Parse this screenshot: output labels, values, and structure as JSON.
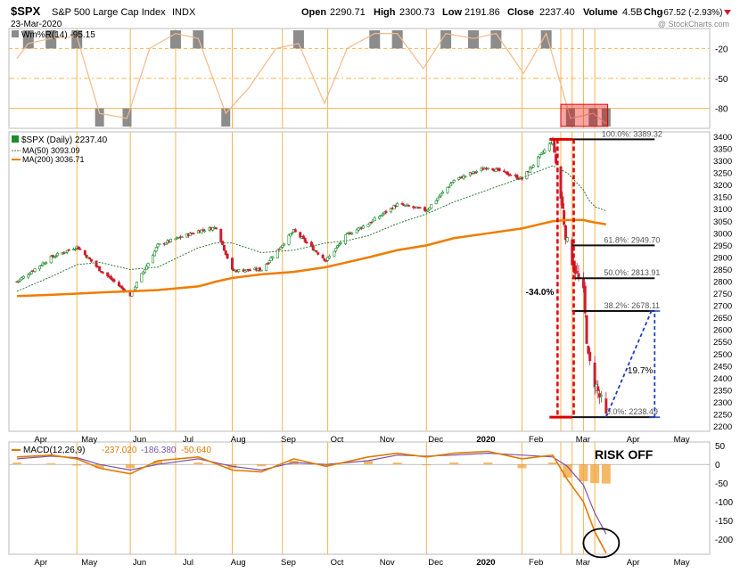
{
  "header": {
    "symbol": "$SPX",
    "name": "S&P 500 Large Cap Index",
    "exchange": "INDX",
    "date": "23-Mar-2020",
    "open_label": "Open",
    "open": "2290.71",
    "high_label": "High",
    "high": "2300.73",
    "low_label": "Low",
    "low": "2191.86",
    "close_label": "Close",
    "close": "2237.40",
    "volume_label": "Volume",
    "volume": "4.5B",
    "chg_label": "Chg",
    "chg": "-67.52 (-2.93%)",
    "watermark": "@ StockCharts.com"
  },
  "colors": {
    "up": "#1a8c2a",
    "down": "#cc1f2f",
    "ma200": "#f07c00",
    "ma50": "#2e7d32",
    "gridline": "#f5b452",
    "fib": "#111111",
    "fib_red": "#e00000",
    "blue": "#1f3fbf",
    "macd_line": "#e07a00",
    "signal_line": "#7a55a8",
    "hist": "#f2a640",
    "wpr_line": "#f6b98a",
    "wpr_fill": "#8c8c8c"
  },
  "chart_data": [
    {
      "type": "line",
      "panel": "Williams %R",
      "title": "Wm%R(14) -95.15",
      "yticks": [
        -20,
        -50,
        -80
      ],
      "ylim": [
        -100,
        0
      ],
      "x": [
        "2019-03-25",
        "2019-04-01",
        "2019-04-15",
        "2019-05-01",
        "2019-05-15",
        "2019-06-01",
        "2019-06-15",
        "2019-07-01",
        "2019-07-15",
        "2019-08-01",
        "2019-08-15",
        "2019-09-01",
        "2019-09-15",
        "2019-10-01",
        "2019-10-15",
        "2019-11-01",
        "2019-11-15",
        "2019-12-01",
        "2019-12-15",
        "2020-01-01",
        "2020-01-15",
        "2020-02-01",
        "2020-02-15",
        "2020-03-01",
        "2020-03-15",
        "2020-03-23"
      ],
      "values": [
        -30,
        -15,
        -10,
        -8,
        -85,
        -90,
        -20,
        -5,
        -10,
        -85,
        -60,
        -20,
        -15,
        -75,
        -20,
        -5,
        -5,
        -40,
        -5,
        -10,
        -5,
        -45,
        -5,
        -90,
        -85,
        -95.15
      ]
    },
    {
      "type": "candlestick",
      "panel": "price",
      "title": "$SPX (Daily) 2237.40",
      "legend": [
        {
          "name": "MA(50) 3093.09",
          "color": "#2e7d32",
          "style": "dotted"
        },
        {
          "name": "MA(200) 3036.71",
          "color": "#f07c00",
          "style": "solid"
        }
      ],
      "yticks": [
        2200,
        2250,
        2300,
        2350,
        2400,
        2450,
        2500,
        2550,
        2600,
        2650,
        2700,
        2750,
        2800,
        2850,
        2900,
        2950,
        3000,
        3050,
        3100,
        3150,
        3200,
        3250,
        3300,
        3350,
        3400
      ],
      "ylim": [
        2180,
        3420
      ],
      "xticks": [
        "Apr",
        "May",
        "Jun",
        "Jul",
        "Aug",
        "Sep",
        "Oct",
        "Nov",
        "Dec",
        "2020",
        "Feb",
        "Mar",
        "Apr",
        "May"
      ],
      "close_x": [
        "2019-03-25",
        "2019-04-15",
        "2019-05-01",
        "2019-05-15",
        "2019-06-03",
        "2019-06-20",
        "2019-07-15",
        "2019-07-26",
        "2019-08-05",
        "2019-08-23",
        "2019-09-12",
        "2019-10-02",
        "2019-10-15",
        "2019-10-28",
        "2019-11-15",
        "2019-12-03",
        "2019-12-20",
        "2020-01-10",
        "2020-01-31",
        "2020-02-19",
        "2020-02-28",
        "2020-03-09",
        "2020-03-12",
        "2020-03-16",
        "2020-03-23"
      ],
      "close": [
        2800,
        2900,
        2945,
        2850,
        2744,
        2950,
        3010,
        3025,
        2845,
        2850,
        3010,
        2887,
        2995,
        3040,
        3120,
        3095,
        3220,
        3275,
        3225,
        3386,
        2954,
        2747,
        2480,
        2386,
        2237
      ],
      "ma50": [
        2760,
        2820,
        2870,
        2880,
        2850,
        2860,
        2940,
        2960,
        2960,
        2920,
        2930,
        2960,
        2970,
        2990,
        3040,
        3080,
        3130,
        3180,
        3230,
        3280,
        3250,
        3180,
        3140,
        3110,
        3093
      ],
      "ma200": [
        2740,
        2745,
        2750,
        2755,
        2760,
        2765,
        2780,
        2800,
        2815,
        2830,
        2840,
        2860,
        2880,
        2900,
        2930,
        2950,
        2980,
        3000,
        3020,
        3050,
        3055,
        3055,
        3050,
        3045,
        3037
      ],
      "fib_levels": [
        {
          "label": "100.0%: 3389.32",
          "value": 3389.32
        },
        {
          "label": "61.8%: 2949.70",
          "value": 2949.7
        },
        {
          "label": "50.0%: 2813.91",
          "value": 2813.91
        },
        {
          "label": "38.2%: 2678.11",
          "value": 2678.11
        },
        {
          "label": "0.0%: 2238.49",
          "value": 2238.49
        }
      ],
      "annotations": [
        {
          "text": "-34.0%",
          "from": 3389.32,
          "to": 2238.49
        },
        {
          "text": "19.7%",
          "from": 2238.49,
          "to": 2678.11
        }
      ]
    },
    {
      "type": "line",
      "panel": "MACD",
      "title": "MACD(12,26,9)",
      "values_text": [
        "-237.020",
        "-186.380",
        "-50.640"
      ],
      "yticks": [
        50,
        0,
        -50,
        -100,
        -150,
        -200
      ],
      "ylim": [
        -240,
        60
      ],
      "annotation": "RISK OFF",
      "x": [
        "2019-03-25",
        "2019-04-15",
        "2019-05-01",
        "2019-05-15",
        "2019-06-03",
        "2019-06-20",
        "2019-07-15",
        "2019-08-05",
        "2019-08-23",
        "2019-09-12",
        "2019-10-02",
        "2019-10-28",
        "2019-11-15",
        "2019-12-03",
        "2019-12-20",
        "2020-01-10",
        "2020-01-31",
        "2020-02-19",
        "2020-02-28",
        "2020-03-09",
        "2020-03-16",
        "2020-03-23"
      ],
      "macd": [
        20,
        25,
        15,
        -10,
        -25,
        10,
        20,
        -15,
        -20,
        15,
        -5,
        20,
        30,
        20,
        30,
        35,
        15,
        25,
        -40,
        -100,
        -180,
        -237
      ],
      "signal": [
        15,
        22,
        18,
        0,
        -15,
        0,
        15,
        -5,
        -15,
        5,
        0,
        10,
        25,
        22,
        25,
        30,
        25,
        20,
        -5,
        -55,
        -130,
        -186
      ],
      "histogram": [
        5,
        3,
        -3,
        -10,
        -10,
        10,
        5,
        -10,
        -5,
        10,
        -5,
        10,
        5,
        -2,
        5,
        5,
        -10,
        5,
        -35,
        -45,
        -50,
        -51
      ]
    }
  ]
}
